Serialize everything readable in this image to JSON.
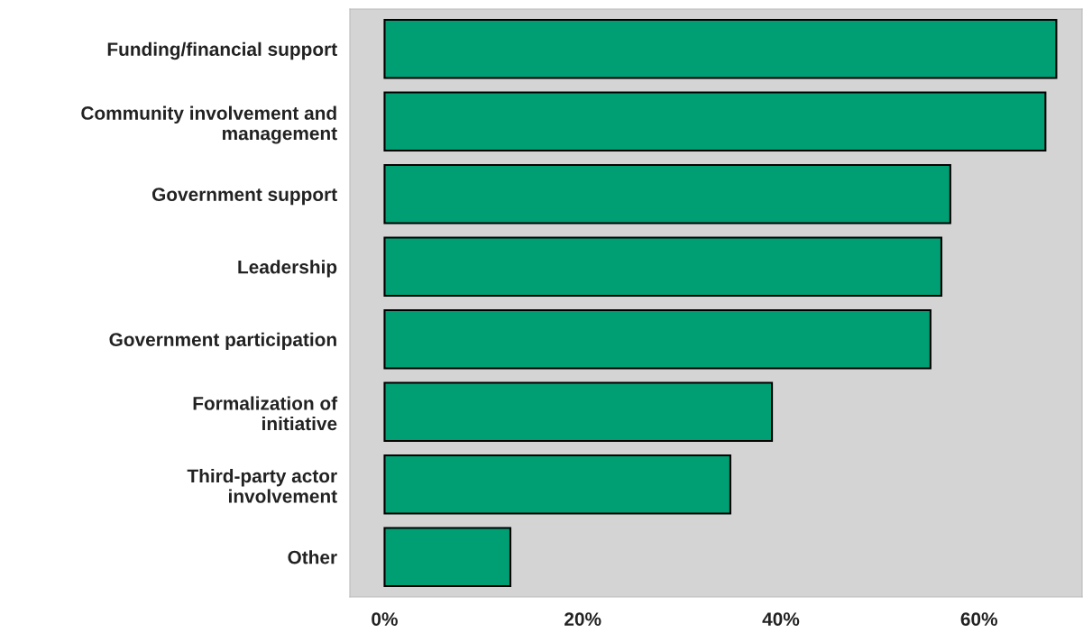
{
  "chart_data": {
    "type": "bar",
    "orientation": "horizontal",
    "categories": [
      "Funding/financial support",
      "Community involvement and\nmanagement",
      "Government support",
      "Leadership",
      "Government participation",
      "Formalization of\ninitiative",
      "Third-party actor\ninvolvement",
      "Other"
    ],
    "values": [
      67.8,
      66.7,
      57.1,
      56.2,
      55.1,
      39.1,
      34.9,
      12.7
    ],
    "color": "#009e73",
    "xlim": [
      -3.5,
      70.4
    ],
    "xticks": [
      {
        "value": 0,
        "label": "0%"
      },
      {
        "value": 20,
        "label": "20%"
      },
      {
        "value": 40,
        "label": "40%"
      },
      {
        "value": 60,
        "label": "60%"
      }
    ],
    "grid": false
  }
}
